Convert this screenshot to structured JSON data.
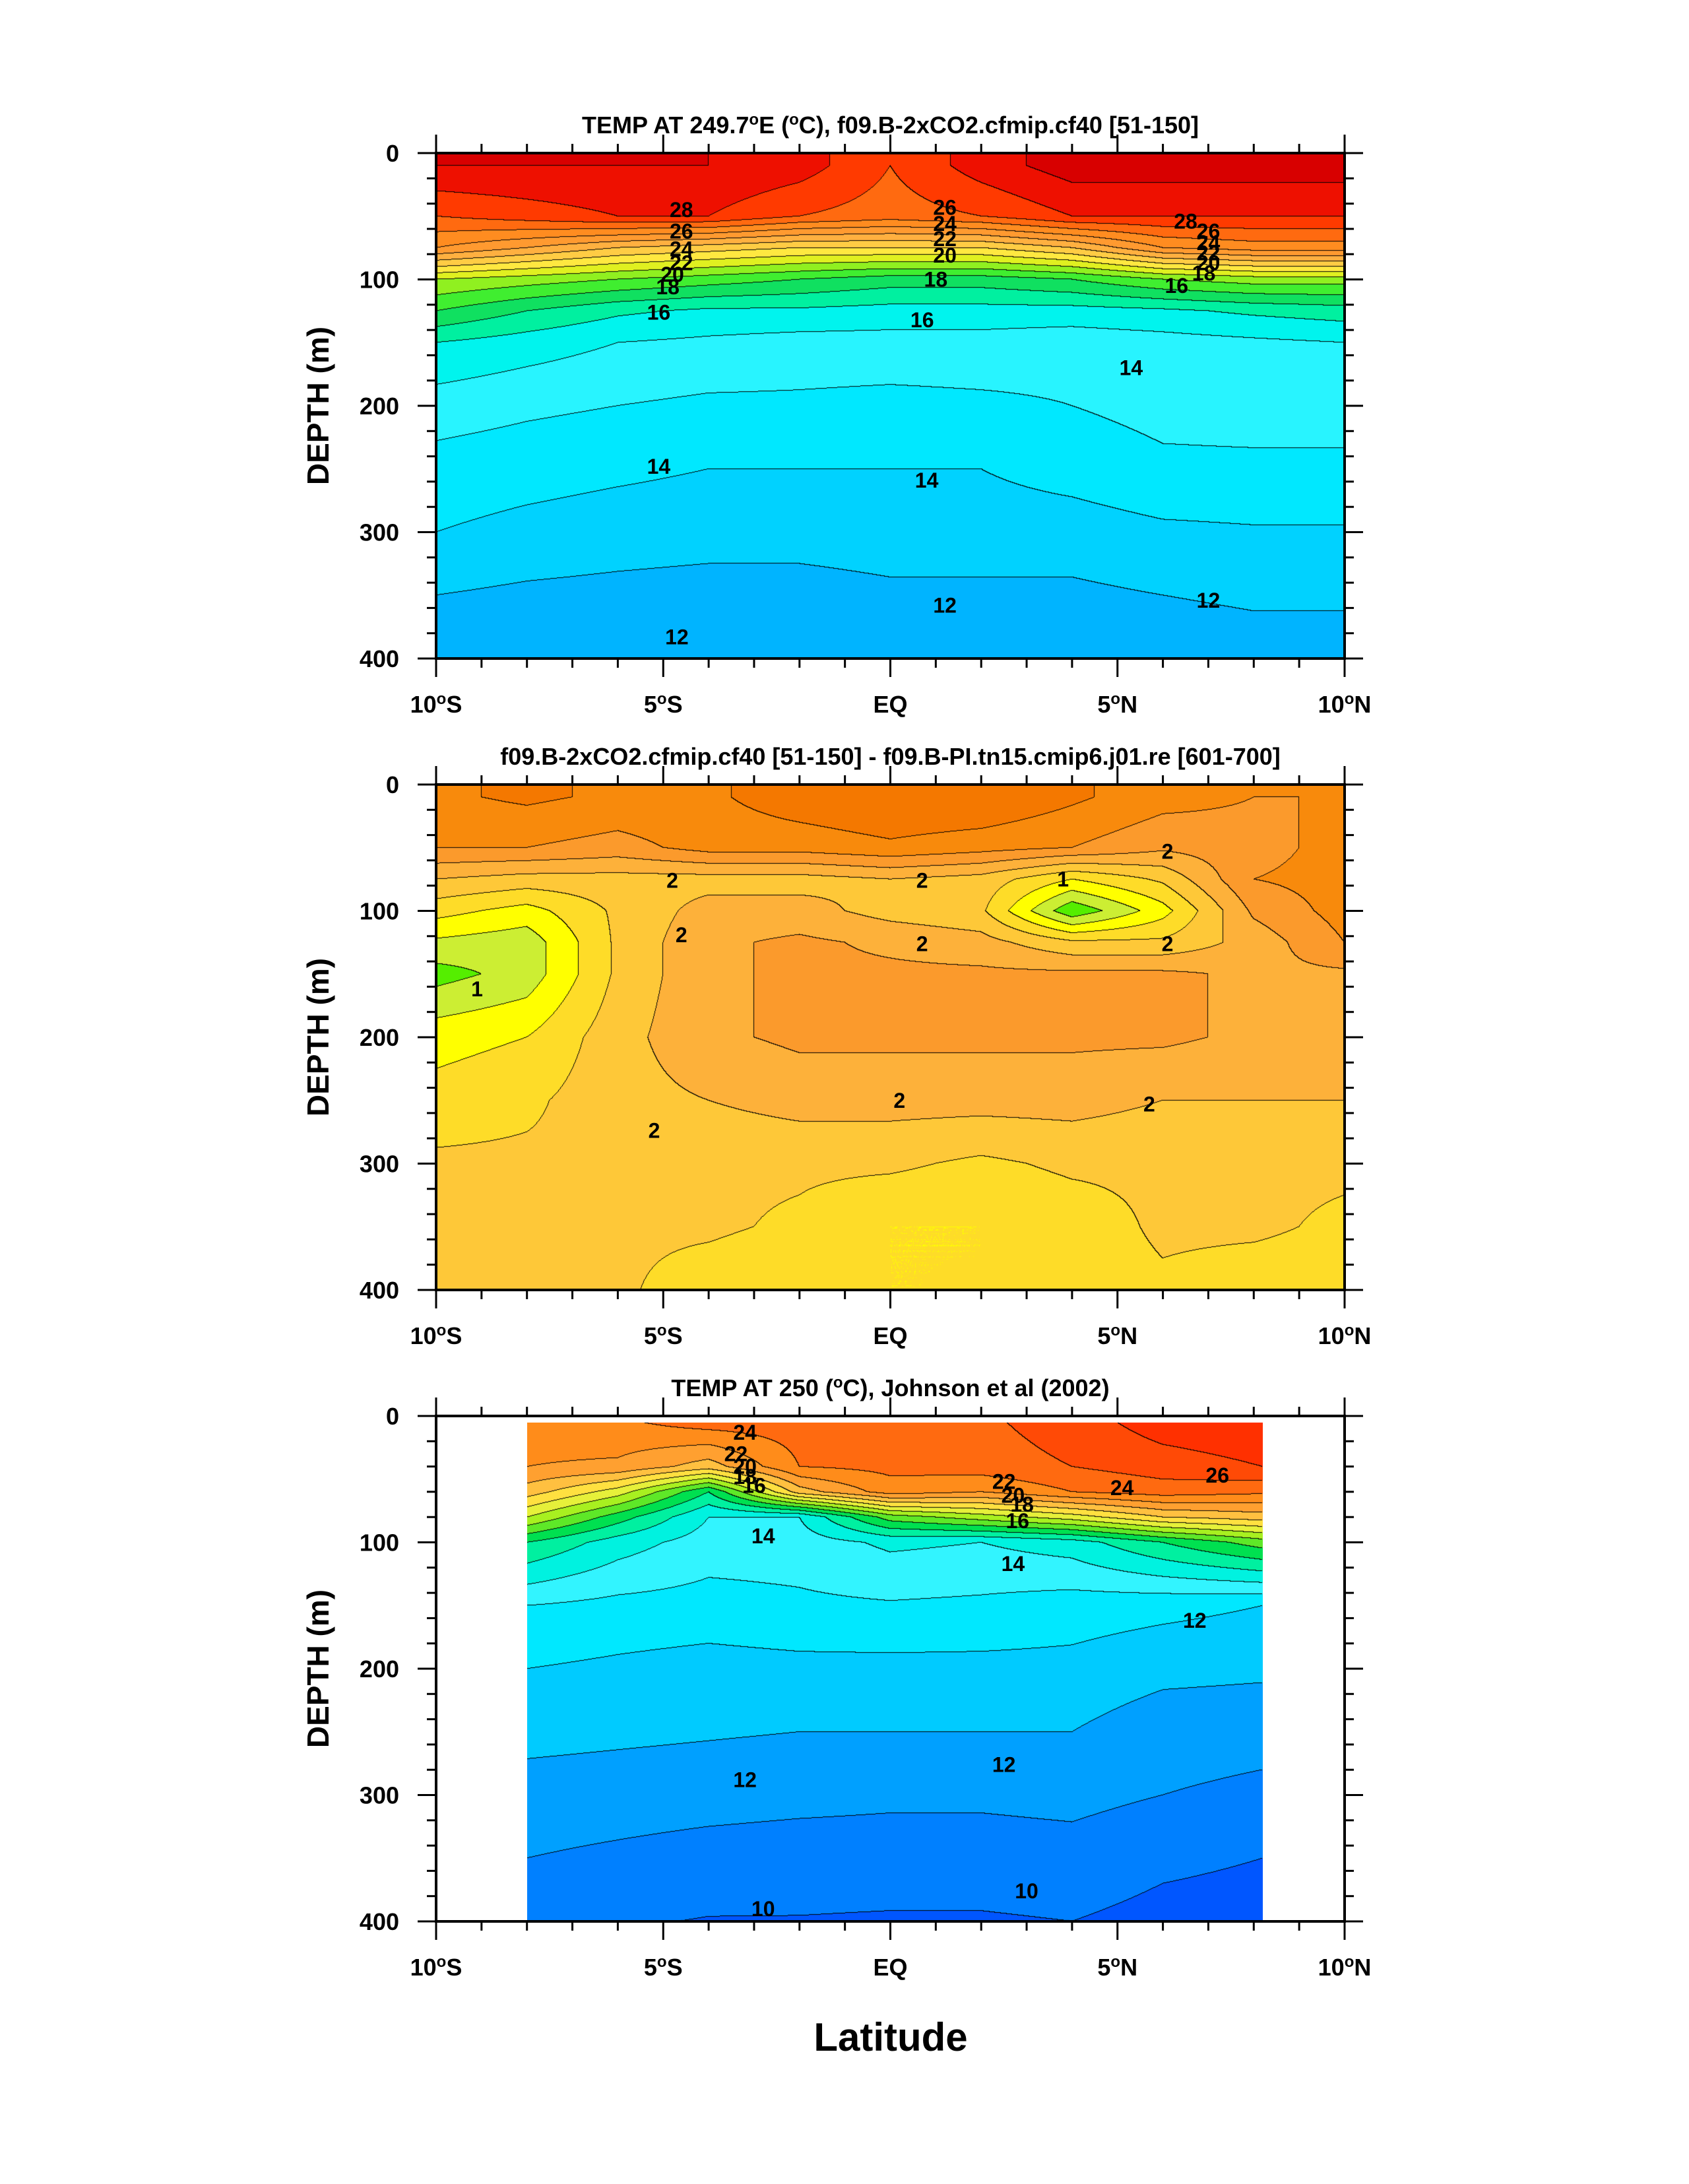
{
  "figure": {
    "xlabel": "Latitude",
    "x_ticks": [
      {
        "value": -10,
        "label": "10",
        "sup": "o",
        "suffix": "S"
      },
      {
        "value": -5,
        "label": "5",
        "sup": "o",
        "suffix": "S"
      },
      {
        "value": 0,
        "label": "EQ",
        "sup": "",
        "suffix": ""
      },
      {
        "value": 5,
        "label": "5",
        "sup": "o",
        "suffix": "N"
      },
      {
        "value": 10,
        "label": "10",
        "sup": "o",
        "suffix": "N"
      }
    ],
    "y_ticks": [
      0,
      100,
      200,
      300,
      400
    ]
  },
  "chart_data": [
    {
      "type": "heatmap",
      "title_parts": [
        "TEMP AT 249.7",
        "o",
        "E (",
        "o",
        "C), f09.B-2xCO2.cfmip.cf40 [51-150]"
      ],
      "ylabel": "DEPTH (m)",
      "xlim": [
        -10,
        10
      ],
      "ylim": [
        400,
        0
      ],
      "x": [
        -10,
        -8,
        -6,
        -4,
        -2,
        0,
        2,
        4,
        6,
        8,
        10
      ],
      "y": [
        10,
        50,
        75,
        100,
        125,
        150,
        200,
        250,
        300,
        350,
        400
      ],
      "z": [
        [
          29.0,
          29.0,
          29.0,
          29.0,
          28.5,
          27.0,
          28.5,
          29.5,
          29.5,
          29.5,
          29.5
        ],
        [
          27.0,
          27.5,
          28.0,
          28.0,
          27.0,
          26.5,
          27.0,
          28.0,
          28.0,
          28.0,
          28.0
        ],
        [
          25.0,
          24.0,
          23.0,
          22.5,
          22.0,
          22.0,
          22.0,
          23.0,
          25.0,
          25.5,
          25.5
        ],
        [
          20.0,
          19.5,
          19.0,
          18.5,
          18.0,
          17.5,
          17.5,
          18.0,
          19.0,
          19.5,
          19.5
        ],
        [
          18.0,
          17.0,
          16.2,
          15.8,
          15.8,
          15.6,
          15.6,
          15.6,
          15.8,
          16.2,
          16.5
        ],
        [
          16.0,
          15.5,
          15.0,
          14.8,
          14.6,
          14.6,
          14.6,
          14.4,
          14.6,
          14.8,
          15.0
        ],
        [
          14.5,
          14.2,
          14.0,
          13.8,
          13.8,
          13.7,
          13.8,
          14.0,
          14.3,
          14.4,
          14.4
        ],
        [
          13.6,
          13.4,
          13.2,
          13.0,
          13.0,
          13.0,
          13.0,
          13.4,
          13.8,
          13.8,
          13.8
        ],
        [
          13.0,
          12.7,
          12.5,
          12.4,
          12.4,
          12.5,
          12.5,
          12.5,
          12.8,
          12.9,
          12.9
        ],
        [
          12.0,
          11.8,
          11.7,
          11.6,
          11.6,
          11.8,
          11.8,
          11.8,
          12.0,
          12.1,
          12.1
        ],
        [
          11.5,
          11.4,
          11.3,
          11.3,
          11.4,
          11.5,
          11.5,
          11.4,
          11.6,
          11.7,
          11.7
        ]
      ],
      "levels": [
        8,
        9,
        10,
        11,
        12,
        13,
        14,
        15,
        16,
        17,
        18,
        19,
        20,
        21,
        22,
        23,
        24,
        25,
        26,
        27,
        28,
        29
      ],
      "colors": [
        "#0044ee",
        "#0060ff",
        "#0080ff",
        "#009cff",
        "#00b4ff",
        "#00d2ff",
        "#00e8ff",
        "#28f4ff",
        "#00f4ee",
        "#00f0a0",
        "#10e060",
        "#40ee30",
        "#90f020",
        "#e0f020",
        "#ffe840",
        "#ffcc44",
        "#ffb040",
        "#ff9a30",
        "#ff8c20",
        "#ff6a10",
        "#ff3a00",
        "#ee1000",
        "#d80000"
      ],
      "contour_labels": [
        {
          "x": -4.6,
          "y": 45,
          "text": "28"
        },
        {
          "x": -4.6,
          "y": 62,
          "text": "26"
        },
        {
          "x": -4.6,
          "y": 76,
          "text": "24"
        },
        {
          "x": -4.6,
          "y": 87,
          "text": "22"
        },
        {
          "x": -4.8,
          "y": 96,
          "text": "20"
        },
        {
          "x": -4.9,
          "y": 106,
          "text": "18"
        },
        {
          "x": -5.1,
          "y": 126,
          "text": "16"
        },
        {
          "x": -5.1,
          "y": 248,
          "text": "14"
        },
        {
          "x": -4.7,
          "y": 383,
          "text": "12"
        },
        {
          "x": 1.2,
          "y": 43,
          "text": "26"
        },
        {
          "x": 1.2,
          "y": 56,
          "text": "24"
        },
        {
          "x": 1.2,
          "y": 68,
          "text": "22"
        },
        {
          "x": 1.2,
          "y": 81,
          "text": "20"
        },
        {
          "x": 1.0,
          "y": 100,
          "text": "18"
        },
        {
          "x": 0.7,
          "y": 132,
          "text": "16"
        },
        {
          "x": 0.8,
          "y": 259,
          "text": "14"
        },
        {
          "x": 1.2,
          "y": 358,
          "text": "12"
        },
        {
          "x": 6.5,
          "y": 54,
          "text": "28"
        },
        {
          "x": 7.0,
          "y": 62,
          "text": "26"
        },
        {
          "x": 7.0,
          "y": 71,
          "text": "24"
        },
        {
          "x": 7.0,
          "y": 79,
          "text": "22"
        },
        {
          "x": 7.0,
          "y": 87,
          "text": "20"
        },
        {
          "x": 6.9,
          "y": 95,
          "text": "18"
        },
        {
          "x": 6.3,
          "y": 105,
          "text": "16"
        },
        {
          "x": 5.3,
          "y": 170,
          "text": "14"
        },
        {
          "x": 7.0,
          "y": 354,
          "text": "12"
        }
      ]
    },
    {
      "type": "heatmap",
      "title_parts": [
        "f09.B-2xCO2.cfmip.cf40 [51-150] - f09.B-PI.tn15.cmip6.j01.re [601-700]"
      ],
      "ylabel": "DEPTH (m)",
      "xlim": [
        -10,
        10
      ],
      "ylim": [
        400,
        0
      ],
      "x": [
        -10,
        -8,
        -6,
        -4,
        -2,
        0,
        2,
        4,
        6,
        8,
        10
      ],
      "y": [
        10,
        50,
        75,
        100,
        125,
        150,
        200,
        250,
        300,
        350,
        400
      ],
      "z": [
        [
          2.7,
          2.8,
          2.7,
          2.7,
          2.9,
          3.0,
          3.0,
          2.8,
          2.6,
          2.5,
          2.5
        ],
        [
          2.5,
          2.5,
          2.4,
          2.6,
          2.6,
          2.7,
          2.6,
          2.5,
          2.3,
          2.4,
          2.6
        ],
        [
          2.0,
          1.9,
          1.9,
          1.9,
          1.9,
          2.0,
          1.9,
          1.5,
          1.8,
          2.5,
          2.6
        ],
        [
          1.6,
          1.4,
          1.8,
          2.1,
          2.1,
          1.9,
          1.8,
          0.8,
          1.4,
          2.3,
          2.6
        ],
        [
          1.2,
          1.1,
          1.8,
          2.2,
          2.3,
          2.2,
          2.1,
          1.8,
          1.8,
          2.1,
          2.5
        ],
        [
          0.9,
          1.1,
          1.8,
          2.2,
          2.3,
          2.3,
          2.3,
          2.3,
          2.3,
          2.2,
          2.2
        ],
        [
          1.4,
          1.5,
          1.9,
          2.2,
          2.3,
          2.3,
          2.3,
          2.3,
          2.3,
          2.2,
          2.2
        ],
        [
          1.6,
          1.7,
          1.9,
          2.0,
          2.1,
          2.1,
          2.1,
          2.1,
          2.0,
          2.0,
          2.0
        ],
        [
          1.8,
          1.8,
          1.8,
          1.8,
          1.8,
          1.8,
          1.7,
          1.8,
          1.8,
          1.8,
          1.8
        ],
        [
          1.8,
          1.8,
          1.8,
          1.8,
          1.7,
          1.5,
          1.5,
          1.6,
          1.8,
          1.8,
          1.7
        ],
        [
          1.8,
          1.8,
          1.8,
          1.6,
          1.5,
          1.5,
          1.5,
          1.6,
          1.7,
          1.6,
          1.6
        ]
      ],
      "levels": [
        0.75,
        1.0,
        1.25,
        1.5,
        1.75,
        2.0,
        2.25,
        2.5,
        2.75
      ],
      "colors": [
        "#00ee66",
        "#55ee00",
        "#ccee33",
        "#ffff00",
        "#fedc28",
        "#fec838",
        "#fdb13a",
        "#fb9a2c",
        "#f88a0c",
        "#f47800"
      ],
      "contour_labels": [
        {
          "x": -4.8,
          "y": 76,
          "text": "2"
        },
        {
          "x": -9.1,
          "y": 162,
          "text": "1"
        },
        {
          "x": -4.6,
          "y": 119,
          "text": "2"
        },
        {
          "x": -5.2,
          "y": 274,
          "text": "2"
        },
        {
          "x": 0.7,
          "y": 76,
          "text": "2"
        },
        {
          "x": 0.7,
          "y": 126,
          "text": "2"
        },
        {
          "x": 0.2,
          "y": 250,
          "text": "2"
        },
        {
          "x": 3.8,
          "y": 75,
          "text": "1"
        },
        {
          "x": 6.1,
          "y": 53,
          "text": "2"
        },
        {
          "x": 6.1,
          "y": 126,
          "text": "2"
        },
        {
          "x": 5.7,
          "y": 253,
          "text": "2"
        }
      ]
    },
    {
      "type": "heatmap",
      "title_parts": [
        "TEMP AT 250 (",
        "o",
        "C), Johnson et al (2002)"
      ],
      "ylabel": "DEPTH (m)",
      "xlim": [
        -10,
        10
      ],
      "ylim": [
        400,
        0
      ],
      "data_xrange": [
        -8,
        8.2
      ],
      "data_yrange": [
        5,
        400
      ],
      "x": [
        -8,
        -6,
        -4,
        -2,
        0,
        2,
        4,
        6,
        8.2
      ],
      "y": [
        5,
        40,
        60,
        80,
        100,
        150,
        200,
        250,
        300,
        350,
        400
      ],
      "z": [
        [
          24.5,
          24.8,
          25.5,
          25.5,
          25.5,
          25.8,
          26.5,
          27.5,
          27.8
        ],
        [
          24.0,
          23.8,
          22.5,
          25.0,
          25.3,
          25.5,
          26.0,
          26.5,
          27.0
        ],
        [
          22.5,
          20.5,
          17.0,
          22.5,
          24.5,
          24.0,
          25.0,
          25.5,
          25.2
        ],
        [
          20.0,
          17.5,
          15.0,
          15.0,
          18.5,
          19.5,
          20.5,
          22.0,
          22.5
        ],
        [
          17.0,
          15.5,
          14.5,
          14.5,
          15.2,
          15.0,
          15.5,
          17.0,
          18.5
        ],
        [
          14.0,
          13.7,
          13.6,
          13.8,
          13.9,
          13.8,
          13.5,
          13.3,
          13.0
        ],
        [
          13.0,
          12.8,
          12.6,
          12.7,
          12.7,
          12.7,
          12.7,
          12.3,
          12.2
        ],
        [
          12.3,
          12.2,
          12.1,
          12.0,
          12.0,
          12.0,
          12.0,
          11.4,
          11.3
        ],
        [
          11.6,
          11.5,
          11.4,
          11.3,
          11.2,
          11.2,
          11.3,
          11.0,
          10.8
        ],
        [
          11.0,
          10.8,
          10.6,
          10.5,
          10.5,
          10.5,
          10.6,
          10.2,
          10.0
        ],
        [
          10.3,
          10.1,
          9.95,
          9.95,
          9.9,
          9.9,
          10.0,
          9.7,
          9.6
        ]
      ],
      "levels": [
        10,
        11,
        12,
        13,
        14,
        15,
        16,
        17,
        18,
        19,
        20,
        21,
        22,
        23,
        24,
        25,
        26,
        27
      ],
      "colors": [
        "#0056ff",
        "#0080ff",
        "#00a0ff",
        "#00cbff",
        "#00e8ff",
        "#32f4ff",
        "#00f2e0",
        "#00f0a0",
        "#00e050",
        "#5ee828",
        "#a8f020",
        "#e6f03a",
        "#ffe040",
        "#ffc040",
        "#ffa030",
        "#ff8c1a",
        "#ff6a10",
        "#ff4a06",
        "#ff3000"
      ],
      "contour_labels": [
        {
          "x": -3.2,
          "y": 13,
          "text": "24"
        },
        {
          "x": -3.4,
          "y": 30,
          "text": "22"
        },
        {
          "x": -3.2,
          "y": 40,
          "text": "20"
        },
        {
          "x": -3.2,
          "y": 48,
          "text": "18"
        },
        {
          "x": -3.0,
          "y": 55,
          "text": "16"
        },
        {
          "x": -2.8,
          "y": 95,
          "text": "14"
        },
        {
          "x": -3.2,
          "y": 288,
          "text": "12"
        },
        {
          "x": -2.8,
          "y": 390,
          "text": "10"
        },
        {
          "x": 2.5,
          "y": 52,
          "text": "22"
        },
        {
          "x": 2.7,
          "y": 63,
          "text": "20"
        },
        {
          "x": 2.9,
          "y": 70,
          "text": "18"
        },
        {
          "x": 2.8,
          "y": 83,
          "text": "16"
        },
        {
          "x": 2.7,
          "y": 117,
          "text": "14"
        },
        {
          "x": 2.5,
          "y": 276,
          "text": "12"
        },
        {
          "x": 3.0,
          "y": 376,
          "text": "10"
        },
        {
          "x": 5.1,
          "y": 57,
          "text": "24"
        },
        {
          "x": 7.2,
          "y": 47,
          "text": "26"
        },
        {
          "x": 6.7,
          "y": 162,
          "text": "12"
        }
      ]
    }
  ]
}
